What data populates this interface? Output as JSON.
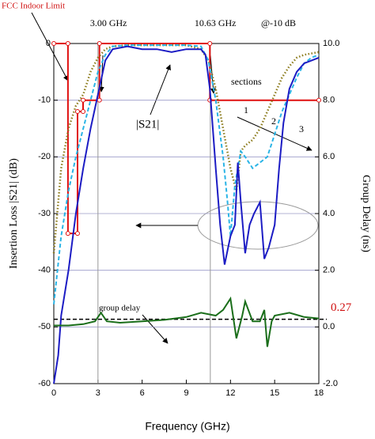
{
  "chart_data": {
    "type": "line",
    "ylabel": "Insertion Loss |S21| (dB)",
    "y2label": "Group Delay (ns)",
    "xlabel": "Frequency (GHz)",
    "xlim": [
      0,
      18
    ],
    "xticks": [
      0,
      3,
      6,
      9,
      12,
      15,
      18
    ],
    "ylim": [
      -60,
      0
    ],
    "yticks": [
      0,
      -10,
      -20,
      -30,
      -40,
      -50,
      -60
    ],
    "y2lim": [
      -2,
      10
    ],
    "y2ticks": [
      {
        "value": 10,
        "label": "10.0"
      },
      {
        "value": 8,
        "label": "8.0"
      },
      {
        "value": 6,
        "label": "6.0"
      },
      {
        "value": 4,
        "label": "4.0"
      },
      {
        "value": 2,
        "label": "2.0"
      },
      {
        "value": 0,
        "label": "0.0"
      },
      {
        "value": -2,
        "label": "-2.0"
      }
    ],
    "grid": true,
    "markers": [
      {
        "x": 3.0,
        "label": "3.00 GHz"
      },
      {
        "x": 10.63,
        "label": "10.63 GHz"
      }
    ],
    "annotations": [
      "@-10 dB",
      "|S21|",
      "sections"
    ],
    "reference": {
      "value": 0.27,
      "label": "0.27",
      "axis": "y2"
    },
    "series": [
      {
        "name": "FCC Indoor Limit",
        "color": "#e01010",
        "style": "solid",
        "circles": true,
        "x": [
          0,
          0.96,
          0.96,
          1.61,
          1.61,
          1.99,
          1.99,
          3.1,
          3.1,
          10.6,
          10.6,
          18
        ],
        "values": [
          0,
          0,
          -33.5,
          -33.5,
          -12,
          -12,
          -10,
          -10,
          0,
          0,
          -10,
          -10
        ]
      },
      {
        "name": "1",
        "color": "#8b7a1a",
        "style": "dotted",
        "x": [
          0,
          0.5,
          1,
          1.5,
          2,
          2.5,
          3,
          3.5,
          4,
          5,
          6,
          7,
          8,
          9,
          10,
          10.5,
          11,
          11.5,
          12,
          12.4,
          12.7,
          13,
          13.5,
          14,
          14.5,
          15,
          15.5,
          16,
          16.5,
          17,
          18
        ],
        "values": [
          -37,
          -22,
          -15,
          -11,
          -9,
          -5,
          -2.5,
          -1,
          -0.5,
          -0.3,
          -0.3,
          -0.3,
          -0.3,
          -0.3,
          -1,
          -3,
          -8,
          -15,
          -22,
          -26,
          -19,
          -18,
          -17,
          -15,
          -12,
          -9,
          -6,
          -4,
          -2.5,
          -2,
          -1.5
        ]
      },
      {
        "name": "2",
        "color": "#2ab4e6",
        "style": "dashed",
        "x": [
          0,
          0.5,
          1,
          1.5,
          2,
          2.5,
          3,
          3.5,
          4,
          5,
          6,
          7,
          8,
          9,
          10,
          10.5,
          11,
          11.5,
          11.8,
          12,
          12.3,
          12.7,
          13,
          13.5,
          14,
          14.5,
          15,
          15.5,
          16,
          16.5,
          17,
          17.5,
          18
        ],
        "values": [
          -46,
          -34,
          -26,
          -20,
          -15,
          -10,
          -5,
          -2,
          -0.5,
          -0.3,
          -0.3,
          -0.3,
          -0.3,
          -0.3,
          -0.5,
          -3,
          -10,
          -20,
          -28,
          -34,
          -25,
          -19,
          -20,
          -22,
          -21,
          -20,
          -16,
          -12,
          -9,
          -6,
          -3.5,
          -2.5,
          -2
        ]
      },
      {
        "name": "3",
        "color": "#1c1cc4",
        "style": "solid",
        "x": [
          0,
          0.3,
          0.5,
          1,
          1.5,
          2,
          2.5,
          3,
          3.5,
          4,
          5,
          6,
          7,
          8,
          9,
          10,
          10.3,
          10.6,
          11,
          11.3,
          11.6,
          12,
          12.3,
          12.5,
          12.7,
          13,
          13.3,
          13.6,
          14,
          14.3,
          14.6,
          15,
          15.3,
          15.6,
          16,
          16.5,
          17,
          18
        ],
        "values": [
          -60,
          -55,
          -48,
          -40,
          -30,
          -22,
          -15,
          -9,
          -3,
          -1,
          -0.5,
          -1,
          -1,
          -1.5,
          -1,
          -1,
          -2,
          -8,
          -22,
          -32,
          -39,
          -34,
          -32,
          -21,
          -28,
          -37,
          -32,
          -30,
          -28,
          -38,
          -36,
          -32,
          -22,
          -14,
          -8,
          -5,
          -3.5,
          -2.5
        ]
      },
      {
        "name": "group delay",
        "color": "#1a6e1a",
        "style": "solid",
        "axis": "y2",
        "x": [
          0,
          1,
          2,
          2.8,
          3.2,
          3.6,
          4.5,
          6,
          7.5,
          9,
          10,
          11,
          11.5,
          12,
          12.4,
          12.8,
          13,
          13.5,
          14,
          14.3,
          14.5,
          14.8,
          15,
          16,
          17,
          18
        ],
        "values": [
          0.05,
          0.05,
          0.1,
          0.2,
          0.5,
          0.2,
          0.15,
          0.2,
          0.25,
          0.35,
          0.5,
          0.4,
          0.6,
          1.0,
          -0.4,
          0.4,
          0.9,
          0.2,
          0.2,
          0.6,
          -0.7,
          0.2,
          0.4,
          0.5,
          0.35,
          0.3
        ]
      }
    ]
  }
}
